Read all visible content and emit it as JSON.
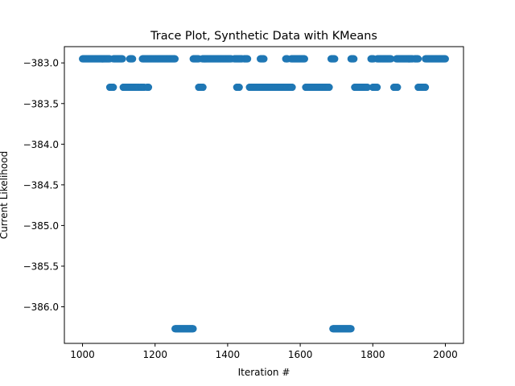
{
  "chart_data": {
    "type": "scatter",
    "title": "Trace Plot, Synthetic Data with KMeans",
    "xlabel": "Iteration #",
    "ylabel": "Current Likelihood",
    "xlim": [
      950,
      2050
    ],
    "ylim": [
      -386.45,
      -382.8
    ],
    "xticks": [
      1000,
      1200,
      1400,
      1600,
      1800,
      2000
    ],
    "xtick_labels": [
      "1000",
      "1200",
      "1400",
      "1600",
      "1800",
      "2000"
    ],
    "yticks": [
      -383.0,
      -383.5,
      -384.0,
      -384.5,
      -385.0,
      -385.5,
      -386.0
    ],
    "ytick_labels": [
      "−383.0",
      "−383.5",
      "−384.0",
      "−384.5",
      "−385.0",
      "−385.5",
      "−386.0"
    ],
    "grid": false,
    "marker_color": "#1f77b4",
    "levels": [
      {
        "y": -382.95,
        "x_ranges": [
          [
            1000,
            1075
          ],
          [
            1085,
            1110
          ],
          [
            1130,
            1138
          ],
          [
            1165,
            1255
          ],
          [
            1305,
            1320
          ],
          [
            1330,
            1410
          ],
          [
            1418,
            1440
          ],
          [
            1445,
            1455
          ],
          [
            1490,
            1500
          ],
          [
            1560,
            1565
          ],
          [
            1575,
            1612
          ],
          [
            1685,
            1695
          ],
          [
            1740,
            1748
          ],
          [
            1795,
            1802
          ],
          [
            1812,
            1850
          ],
          [
            1865,
            1910
          ],
          [
            1915,
            1925
          ],
          [
            1945,
            2000
          ]
        ]
      },
      {
        "y": -383.3,
        "x_ranges": [
          [
            1075,
            1085
          ],
          [
            1112,
            1155
          ],
          [
            1160,
            1170
          ],
          [
            1178,
            1182
          ],
          [
            1320,
            1332
          ],
          [
            1425,
            1432
          ],
          [
            1460,
            1565
          ],
          [
            1568,
            1578
          ],
          [
            1615,
            1680
          ],
          [
            1750,
            1785
          ],
          [
            1800,
            1812
          ],
          [
            1858,
            1868
          ],
          [
            1925,
            1945
          ]
        ]
      },
      {
        "y": -386.27,
        "x_ranges": [
          [
            1255,
            1305
          ],
          [
            1690,
            1740
          ]
        ]
      }
    ]
  }
}
